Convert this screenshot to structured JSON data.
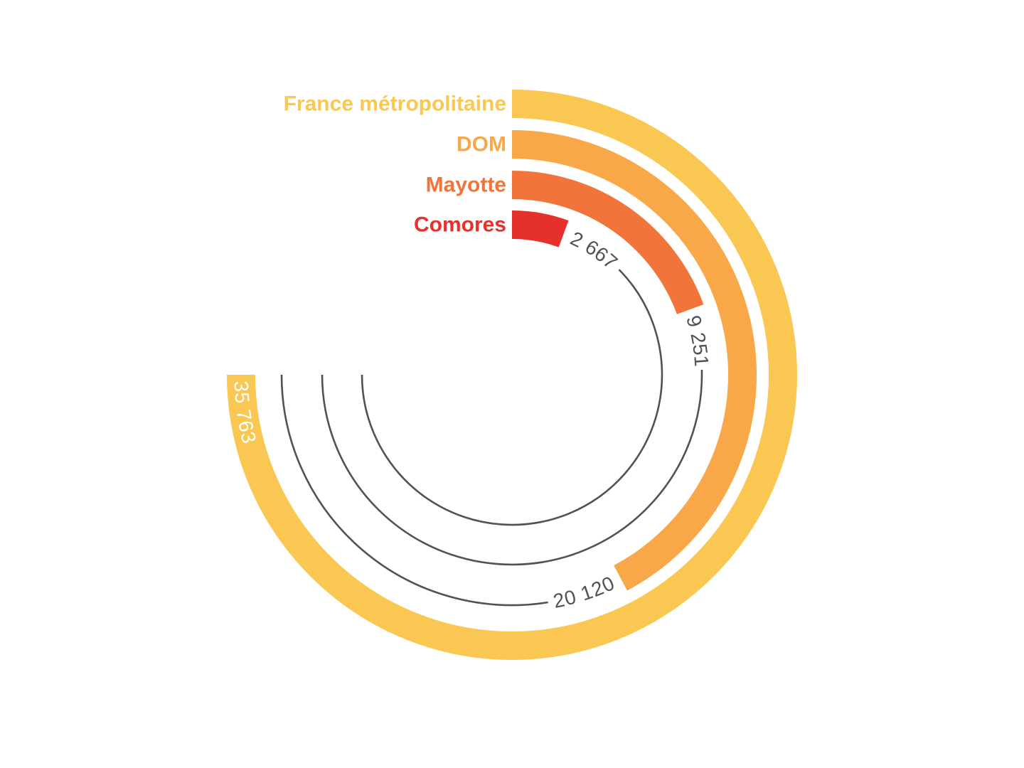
{
  "page": {
    "background_color": "#FFFFFF"
  },
  "chart_data": {
    "type": "radial-bar",
    "title": "",
    "legend_position": "labels-at-arc-start-left",
    "grid": "per-series gray track arcs continuing each bar to the maximum angle",
    "scale": {
      "min": 0,
      "max": 35763,
      "start_angle_deg": 0,
      "max_angle_deg": 270,
      "direction": "clockwise"
    },
    "center": {
      "x": 720,
      "y": 527
    },
    "band_width": 40,
    "track": {
      "color": "#525256",
      "width": 2.6
    },
    "value_text_color": "#525256",
    "categories": [
      "France métropolitaine",
      "DOM",
      "Mayotte",
      "Comores"
    ],
    "values": [
      35763,
      20120,
      9251,
      2667
    ],
    "series": [
      {
        "name": "France métropolitaine",
        "value": 35763,
        "display_value": "35 763",
        "color": "#F9C752",
        "radius": 381,
        "track_start_deg": null,
        "value_label": {
          "placement": "on-bar",
          "color": "#FFFFFF",
          "direction": "ccw",
          "start_deg": 268.7
        }
      },
      {
        "name": "DOM",
        "value": 20120,
        "display_value": "20 120",
        "color": "#F8A848",
        "radius": 324,
        "track_start_deg": 171.0,
        "value_label": {
          "placement": "after-bar",
          "color": "#525256",
          "direction": "ccw",
          "start_deg": 169.6
        }
      },
      {
        "name": "Mayotte",
        "value": 9251,
        "display_value": "9 251",
        "color": "#F1753B",
        "radius": 267,
        "track_start_deg": 88.5,
        "value_label": {
          "placement": "after-bar",
          "color": "#525256",
          "direction": "cw",
          "start_deg": 72.0
        }
      },
      {
        "name": "Comores",
        "value": 2667,
        "display_value": "2 667",
        "color": "#E5302C",
        "radius": 211,
        "track_start_deg": 45.5,
        "value_label": {
          "placement": "after-bar",
          "color": "#525256",
          "direction": "cw",
          "start_deg": 23.5
        }
      }
    ],
    "category_label_style": {
      "anchor_x": 712,
      "font_size": 30,
      "weight": 700
    }
  }
}
